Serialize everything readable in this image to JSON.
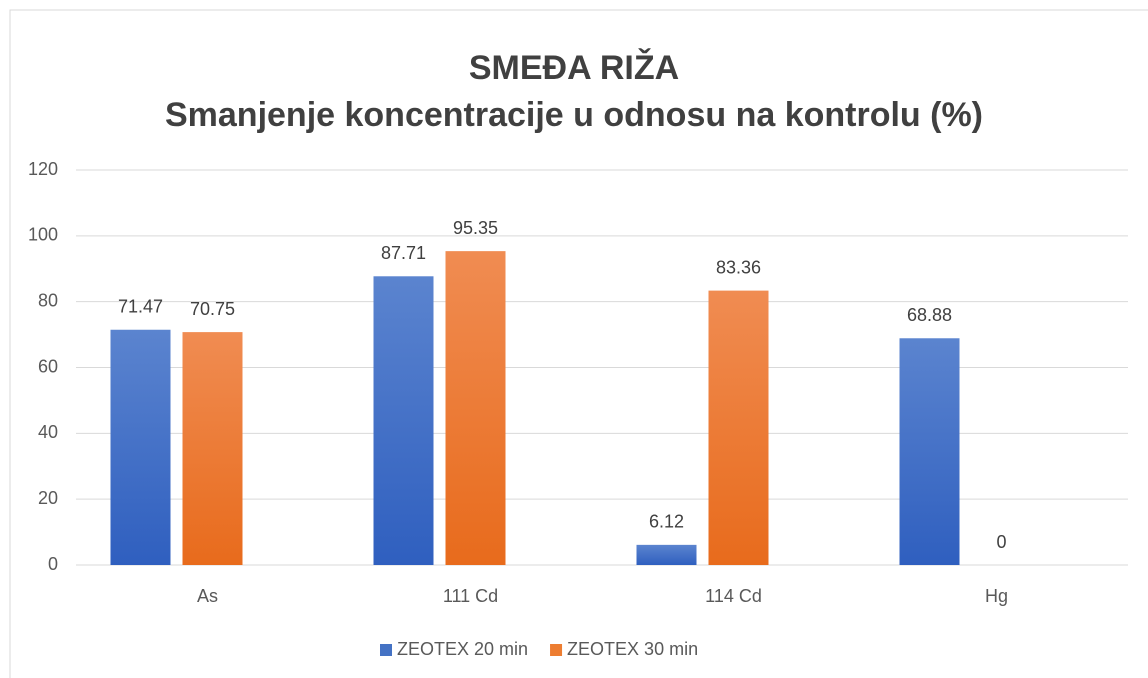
{
  "chart_data": {
    "type": "bar",
    "title": "SMEĐA RIŽA",
    "subtitle": "Smanjenje koncentracije u odnosu na kontrolu (%)",
    "categories": [
      "As",
      "111 Cd",
      "114 Cd",
      "Hg"
    ],
    "series": [
      {
        "name": "ZEOTEX 20 min",
        "color": "#4472c4",
        "values": [
          71.47,
          87.71,
          6.12,
          68.88
        ]
      },
      {
        "name": "ZEOTEX 30 min",
        "color": "#ed7d31",
        "values": [
          70.75,
          95.35,
          83.36,
          0
        ]
      }
    ],
    "ylim": [
      0,
      120
    ],
    "yticks": [
      0,
      20,
      40,
      60,
      80,
      100,
      120
    ],
    "grid": true,
    "legend": "bottom"
  }
}
